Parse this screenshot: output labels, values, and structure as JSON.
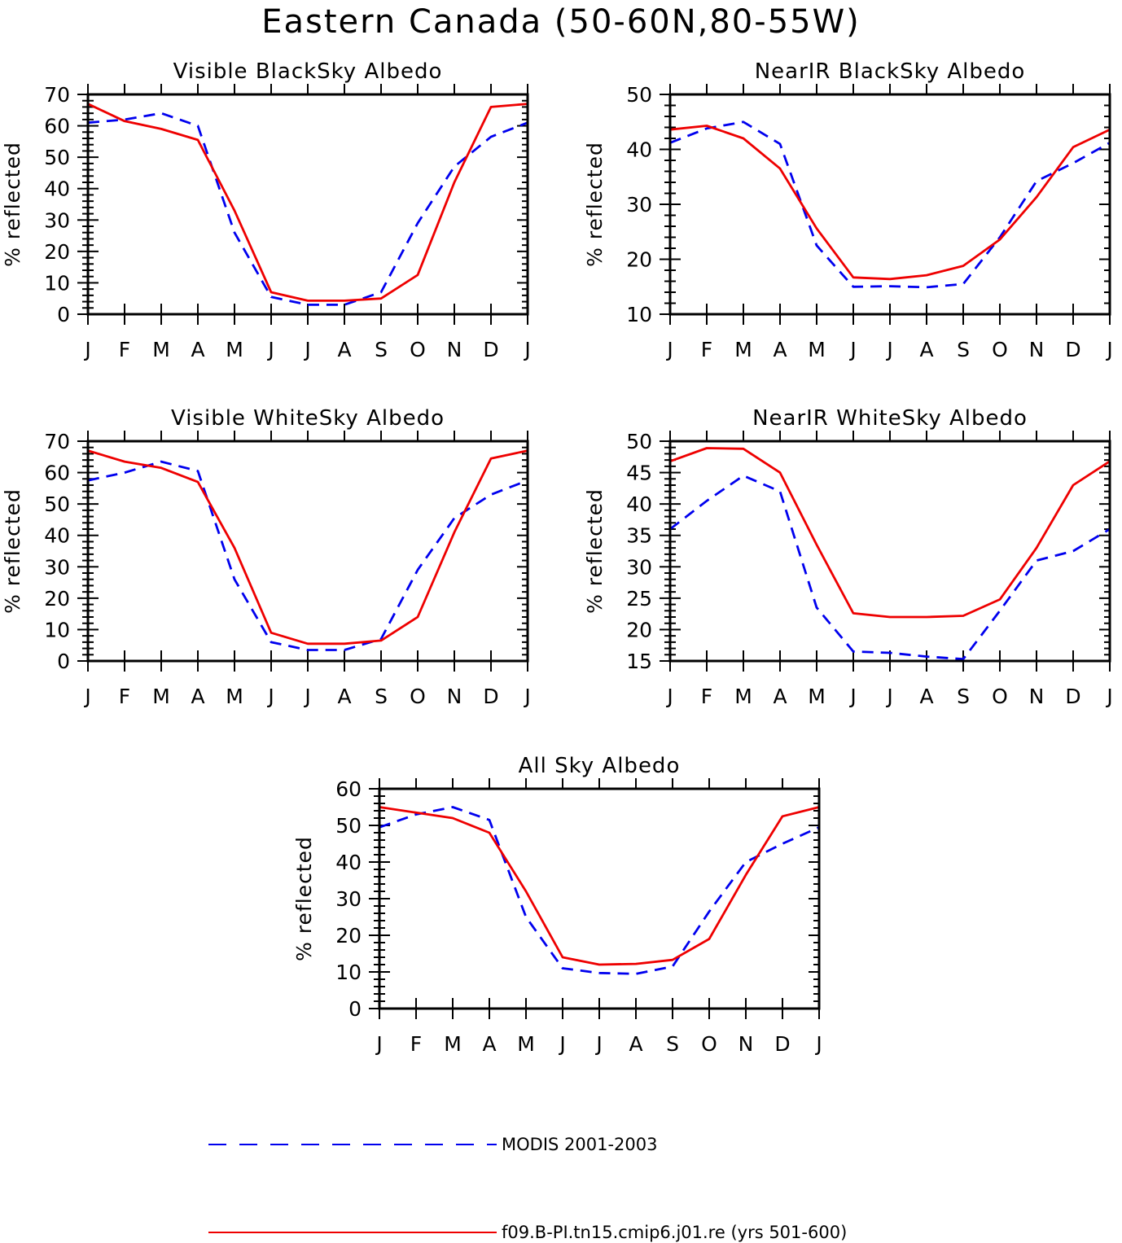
{
  "title": "Eastern Canada (50-60N,80-55W)",
  "months": [
    "J",
    "F",
    "M",
    "A",
    "M",
    "J",
    "J",
    "A",
    "S",
    "O",
    "N",
    "D",
    "J"
  ],
  "legend": [
    {
      "label": "MODIS 2001-2003",
      "color": "#0000ee",
      "style": "dashed"
    },
    {
      "label": "f09.B-PI.tn15.cmip6.j01.re (yrs 501-600)",
      "color": "#ee0000",
      "style": "solid"
    }
  ],
  "chart_data": [
    {
      "type": "line",
      "title": "Visible BlackSky Albedo",
      "ylabel": "% reflected",
      "ylim": [
        0,
        70
      ],
      "yticks": [
        0,
        10,
        20,
        30,
        40,
        50,
        60,
        70
      ],
      "x": [
        "J",
        "F",
        "M",
        "A",
        "M",
        "J",
        "J",
        "A",
        "S",
        "O",
        "N",
        "D",
        "J"
      ],
      "series": [
        {
          "name": "MODIS 2001-2003",
          "values": [
            61,
            62,
            64,
            60,
            26,
            5.5,
            3,
            3,
            7,
            29,
            47,
            56.5,
            61
          ]
        },
        {
          "name": "f09.B-PI.tn15.cmip6.j01.re (yrs 501-600)",
          "values": [
            67,
            61.5,
            59,
            55.5,
            33,
            7,
            4.3,
            4.3,
            5,
            12.5,
            42,
            66,
            67
          ]
        }
      ]
    },
    {
      "type": "line",
      "title": "NearIR BlackSky Albedo",
      "ylabel": "% reflected",
      "ylim": [
        10,
        50
      ],
      "yticks": [
        10,
        20,
        30,
        40,
        50
      ],
      "x": [
        "J",
        "F",
        "M",
        "A",
        "M",
        "J",
        "J",
        "A",
        "S",
        "O",
        "N",
        "D",
        "J"
      ],
      "series": [
        {
          "name": "MODIS 2001-2003",
          "values": [
            41.2,
            43.8,
            45,
            41,
            22.5,
            15,
            15.1,
            14.9,
            15.5,
            24,
            34.2,
            37.5,
            41.2
          ]
        },
        {
          "name": "f09.B-PI.tn15.cmip6.j01.re (yrs 501-600)",
          "values": [
            43.6,
            44.3,
            42,
            36.5,
            25.6,
            16.7,
            16.4,
            17.1,
            18.8,
            23.6,
            31.3,
            40.4,
            43.6
          ]
        }
      ]
    },
    {
      "type": "line",
      "title": "Visible WhiteSky Albedo",
      "ylabel": "% reflected",
      "ylim": [
        0,
        70
      ],
      "yticks": [
        0,
        10,
        20,
        30,
        40,
        50,
        60,
        70
      ],
      "x": [
        "J",
        "F",
        "M",
        "A",
        "M",
        "J",
        "J",
        "A",
        "S",
        "O",
        "N",
        "D",
        "J"
      ],
      "series": [
        {
          "name": "MODIS 2001-2003",
          "values": [
            57.5,
            60,
            63.5,
            60.5,
            26,
            6,
            3.5,
            3.5,
            7,
            29,
            45.5,
            53,
            57.5
          ]
        },
        {
          "name": "f09.B-PI.tn15.cmip6.j01.re (yrs 501-600)",
          "values": [
            67,
            63.5,
            61.5,
            57,
            36,
            9,
            5.5,
            5.5,
            6.5,
            14,
            41,
            64.5,
            67
          ]
        }
      ]
    },
    {
      "type": "line",
      "title": "NearIR WhiteSky Albedo",
      "ylabel": "% reflected",
      "ylim": [
        15,
        50
      ],
      "yticks": [
        15,
        20,
        25,
        30,
        35,
        40,
        45,
        50
      ],
      "x": [
        "J",
        "F",
        "M",
        "A",
        "M",
        "J",
        "J",
        "A",
        "S",
        "O",
        "N",
        "D",
        "J"
      ],
      "series": [
        {
          "name": "MODIS 2001-2003",
          "values": [
            36,
            40.5,
            44.5,
            42,
            23.5,
            16.5,
            16.3,
            15.7,
            15.3,
            23,
            31,
            32.5,
            36
          ]
        },
        {
          "name": "f09.B-PI.tn15.cmip6.j01.re (yrs 501-600)",
          "values": [
            46.8,
            48.9,
            48.8,
            45,
            33.5,
            22.6,
            22,
            22,
            22.2,
            24.8,
            33,
            43,
            46.8
          ]
        }
      ]
    },
    {
      "type": "line",
      "title": "All Sky Albedo",
      "ylabel": "% reflected",
      "ylim": [
        0,
        60
      ],
      "yticks": [
        0,
        10,
        20,
        30,
        40,
        50,
        60
      ],
      "x": [
        "J",
        "F",
        "M",
        "A",
        "M",
        "J",
        "J",
        "A",
        "S",
        "O",
        "N",
        "D",
        "J"
      ],
      "series": [
        {
          "name": "MODIS 2001-2003",
          "values": [
            49.5,
            53,
            55,
            51.5,
            25,
            11,
            9.7,
            9.5,
            11.5,
            26.5,
            40,
            45,
            49.5
          ]
        },
        {
          "name": "f09.B-PI.tn15.cmip6.j01.re (yrs 501-600)",
          "values": [
            55,
            53.5,
            52,
            48,
            32,
            14,
            12,
            12.2,
            13.3,
            19,
            36.5,
            52.5,
            55
          ]
        }
      ]
    }
  ]
}
